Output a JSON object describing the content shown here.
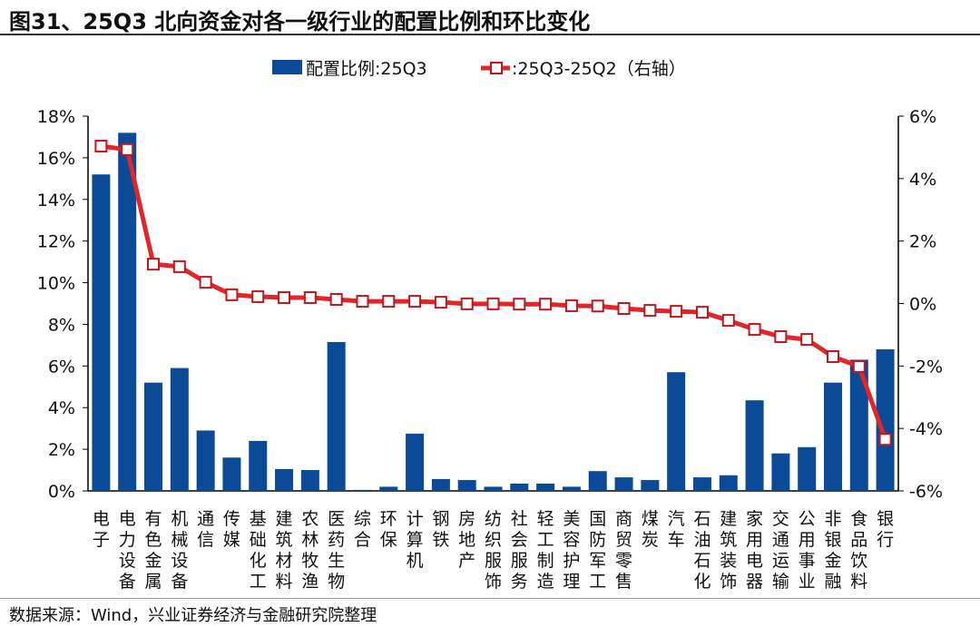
{
  "title": "图31、25Q3 北向资金对各一级行业的配置比例和环比变化",
  "source": "数据来源：Wind，兴业证券经济与金融研究院整理",
  "chart_data": {
    "type": "bar+line",
    "title": "图31、25Q3 北向资金对各一级行业的配置比例和环比变化",
    "categories": [
      "电子",
      "电力设备",
      "有色金属",
      "机械设备",
      "通信",
      "传媒",
      "基础化工",
      "建筑材料",
      "农林牧渔",
      "医药生物",
      "综合",
      "环保",
      "计算机",
      "钢铁",
      "房地产",
      "纺织服饰",
      "社会服务",
      "轻工制造",
      "美容护理",
      "国防军工",
      "商贸零售",
      "煤炭",
      "汽车",
      "石油石化",
      "建筑装饰",
      "家用电器",
      "交通运输",
      "公用事业",
      "非银金融",
      "食品饮料",
      "银行"
    ],
    "series": [
      {
        "name": "配置比例:25Q3",
        "type": "bar",
        "axis": "left",
        "color": "#0a4a96",
        "values": [
          15.2,
          17.2,
          5.2,
          5.9,
          2.9,
          1.6,
          2.4,
          1.05,
          1.0,
          7.15,
          0.05,
          0.2,
          2.75,
          0.57,
          0.52,
          0.2,
          0.35,
          0.35,
          0.2,
          0.95,
          0.65,
          0.52,
          5.7,
          0.65,
          0.75,
          4.35,
          1.8,
          2.1,
          5.2,
          6.3,
          6.8
        ]
      },
      {
        "name": ":25Q3-25Q2（右轴）",
        "type": "line",
        "axis": "right",
        "color": "#e0262a",
        "values": [
          5.04,
          4.93,
          1.26,
          1.18,
          0.68,
          0.28,
          0.22,
          0.19,
          0.19,
          0.13,
          0.07,
          0.07,
          0.07,
          0.04,
          -0.01,
          -0.01,
          -0.02,
          -0.02,
          -0.07,
          -0.08,
          -0.16,
          -0.22,
          -0.25,
          -0.28,
          -0.54,
          -0.83,
          -1.06,
          -1.15,
          -1.7,
          -2.02,
          -4.35
        ]
      }
    ],
    "y_left": {
      "range": [
        0,
        18
      ],
      "ticks": [
        "0%",
        "2%",
        "4%",
        "6%",
        "8%",
        "10%",
        "12%",
        "14%",
        "16%",
        "18%"
      ]
    },
    "y_right": {
      "range": [
        -6,
        6
      ],
      "ticks": [
        "-6%",
        "-4%",
        "-2%",
        "0%",
        "2%",
        "4%",
        "6%"
      ]
    },
    "grid": false,
    "legend": "top"
  }
}
